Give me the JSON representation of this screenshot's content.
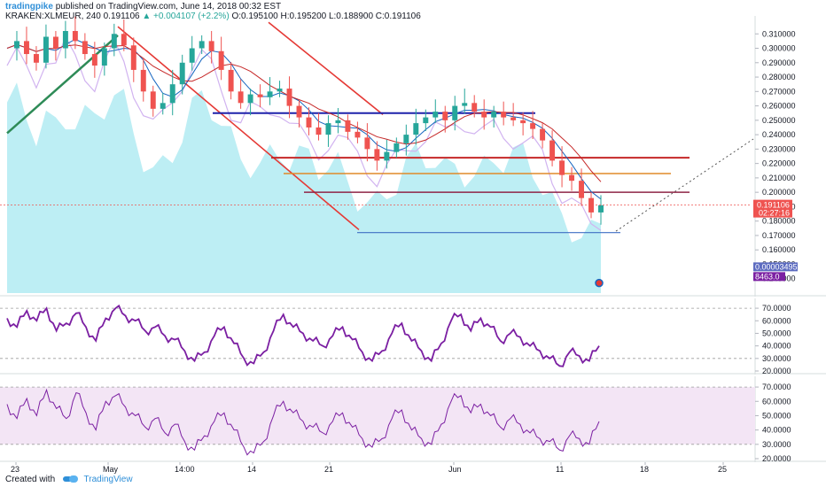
{
  "header": {
    "brand": "tradingpike",
    "published": "published on TradingView.com, June 14, 2018 00:32 EST",
    "symbol": "KRAKEN:XLMEUR, 240",
    "last": "0.191106",
    "change": "▲ +0.004107 (+2.2%)",
    "ohlc": "O:0.195100 H:0.195200 L:0.188900 C:0.191106"
  },
  "footer": {
    "created": "Created with",
    "brand": "TradingView"
  },
  "colors": {
    "up": "#26a69a",
    "down": "#ef5350",
    "channel": "#e53935",
    "support": "#1e22aa",
    "green_trend": "#2e8b57",
    "volume": "#b2ebf2",
    "rsi": "#7b1fa2",
    "rsi_band": "#f3e5f5"
  },
  "chart_data": [
    {
      "type": "candlestick",
      "title": "KRAKEN:XLMEUR, 240",
      "ylim": [
        0.13,
        0.32
      ],
      "y_ticks": [
        "0.310000",
        "0.300000",
        "0.290000",
        "0.280000",
        "0.270000",
        "0.260000",
        "0.250000",
        "0.240000",
        "0.230000",
        "0.220000",
        "0.210000",
        "0.200000",
        "0.190000",
        "0.180000",
        "0.170000",
        "0.160000",
        "0.150000",
        "0.140000"
      ],
      "y_tick_values": [
        0.31,
        0.3,
        0.29,
        0.28,
        0.27,
        0.26,
        0.25,
        0.24,
        0.23,
        0.22,
        0.21,
        0.2,
        0.19,
        0.18,
        0.17,
        0.16,
        0.15,
        0.14
      ],
      "x_tick_labels": [
        "23",
        "May",
        "14:00",
        "14",
        "21",
        "Jun",
        "11",
        "18",
        "25"
      ],
      "price_path": [
        0.3,
        0.305,
        0.296,
        0.29,
        0.308,
        0.3,
        0.312,
        0.305,
        0.296,
        0.288,
        0.3,
        0.31,
        0.302,
        0.285,
        0.27,
        0.258,
        0.262,
        0.275,
        0.29,
        0.3,
        0.305,
        0.298,
        0.285,
        0.27,
        0.262,
        0.268,
        0.266,
        0.27,
        0.272,
        0.26,
        0.252,
        0.245,
        0.24,
        0.248,
        0.25,
        0.242,
        0.238,
        0.23,
        0.222,
        0.228,
        0.234,
        0.24,
        0.248,
        0.252,
        0.256,
        0.25,
        0.26,
        0.262,
        0.256,
        0.252,
        0.256,
        0.252,
        0.25,
        0.248,
        0.244,
        0.236,
        0.222,
        0.212,
        0.208,
        0.196,
        0.186,
        0.191
      ],
      "last_price": "0.191106",
      "last_time": "02:27:16",
      "volume_label": "8463.0",
      "indicator_label": "0.00003495",
      "levels": [
        {
          "name": "support-blue",
          "value": 0.255
        },
        {
          "name": "resistance-red",
          "value": 0.224
        },
        {
          "name": "resistance-orange",
          "value": 0.213
        },
        {
          "name": "resistance-maroon",
          "value": 0.2
        },
        {
          "name": "support-blue-low",
          "value": 0.172
        }
      ]
    },
    {
      "type": "line",
      "title": "RSI",
      "ylim": [
        20,
        75
      ],
      "y_ticks": [
        "70.0000",
        "60.0000",
        "50.0000",
        "40.0000",
        "30.0000",
        "20.0000"
      ],
      "y_tick_values": [
        70,
        60,
        50,
        40,
        30,
        20
      ],
      "values": [
        62,
        55,
        68,
        60,
        70,
        52,
        58,
        66,
        55,
        44,
        62,
        70,
        64,
        60,
        52,
        55,
        48,
        45,
        36,
        28,
        35,
        48,
        55,
        42,
        30,
        26,
        35,
        52,
        65,
        55,
        50,
        44,
        40,
        48,
        55,
        45,
        35,
        28,
        36,
        50,
        58,
        44,
        36,
        28,
        42,
        60,
        65,
        52,
        62,
        55,
        44,
        50,
        47,
        40,
        36,
        30,
        24,
        35,
        32,
        28,
        40
      ]
    },
    {
      "type": "line",
      "title": "RSI",
      "ylim": [
        20,
        75
      ],
      "y_ticks": [
        "70.0000",
        "60.0000",
        "50.0000",
        "40.0000",
        "30.0000",
        "20.0000"
      ],
      "y_tick_values": [
        70,
        60,
        50,
        40,
        30,
        20
      ],
      "band": [
        30,
        70
      ],
      "values": [
        58,
        48,
        62,
        50,
        68,
        55,
        48,
        66,
        52,
        40,
        60,
        64,
        56,
        50,
        42,
        48,
        38,
        44,
        32,
        26,
        36,
        46,
        52,
        40,
        28,
        24,
        32,
        50,
        60,
        52,
        46,
        42,
        38,
        46,
        52,
        42,
        34,
        28,
        34,
        48,
        54,
        40,
        34,
        30,
        44,
        60,
        64,
        52,
        58,
        50,
        42,
        48,
        44,
        38,
        34,
        32,
        26,
        36,
        34,
        30,
        46
      ]
    }
  ]
}
